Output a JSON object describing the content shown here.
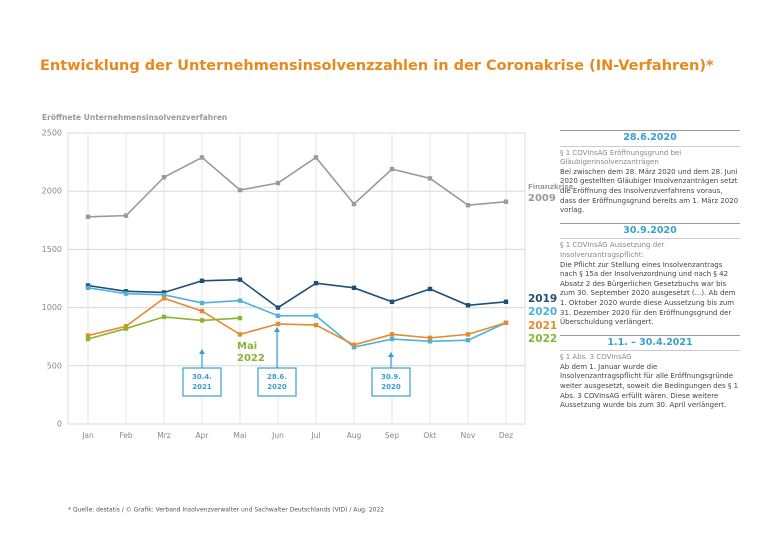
{
  "chart_data": {
    "type": "line",
    "title": "Entwicklung der Unternehmensinsolvenzzahlen in der Coronakrise (IN-Verfahren)*",
    "ylabel": "Eröffnete Unternehmensinsolvenzverfahren",
    "categories": [
      "Jan",
      "Feb",
      "Mrz",
      "Apr",
      "Mai",
      "Jun",
      "Jul",
      "Aug",
      "Sep",
      "Okt",
      "Nov",
      "Dez"
    ],
    "series": [
      {
        "name": "2009",
        "color": "#9a9a9a",
        "values": [
          1780,
          1790,
          2120,
          2290,
          2010,
          2070,
          2290,
          1890,
          2190,
          2110,
          1880,
          1910
        ]
      },
      {
        "name": "2019",
        "color": "#1f4e79",
        "values": [
          1190,
          1140,
          1130,
          1230,
          1240,
          1000,
          1210,
          1170,
          1050,
          1160,
          1020,
          1050
        ]
      },
      {
        "name": "2020",
        "color": "#4db3d8",
        "values": [
          1170,
          1120,
          1110,
          1040,
          1060,
          930,
          930,
          660,
          730,
          710,
          720,
          870
        ]
      },
      {
        "name": "2021",
        "color": "#e58a2e",
        "values": [
          760,
          840,
          1080,
          970,
          770,
          860,
          850,
          680,
          770,
          740,
          770,
          870
        ]
      },
      {
        "name": "2022",
        "color": "#8ab531",
        "values": [
          730,
          820,
          920,
          890,
          910,
          null,
          null,
          null,
          null,
          null,
          null,
          null
        ]
      }
    ],
    "ylim": [
      0,
      2500
    ],
    "yticks": [
      0,
      500,
      1000,
      1500,
      2000,
      2500
    ],
    "grid": true,
    "notes": [
      "Finanzkrise",
      "Mai"
    ],
    "annotations": [
      [
        "30.4.",
        "2021"
      ],
      [
        "28.6.",
        "2020"
      ],
      [
        "30.9.",
        "2020"
      ]
    ],
    "footnote": "* Quelle: destatis / © Grafik: Verband Insolvenzverwalter und Sachwalter Deutschlands (VID) / Aug. 2022"
  },
  "sidebar": [
    {
      "heading": "28.6.2020",
      "subheading": "§ 1 COVInsAG Eröffnungsgrund bei Gläubigerinsolvenzanträgen",
      "body": "Bei zwischen dem 28. März 2020 und dem 28. Juni 2020 gestellten Gläubiger Insolvenzanträgen setzt die Eröffnung des Insolvenzverfahrens voraus, dass der Eröffnungsgrund bereits am 1. März 2020 vorlag."
    },
    {
      "heading": "30.9.2020",
      "subheading": "§ 1 COVInsAG Aussetzung der Insolvenzantragspflicht:",
      "body": "Die Pflicht zur Stellung eines Insolvenzantrags nach § 15a der Insolvenzordnung und nach § 42 Absatz 2 des Bürgerlichen Gesetzbuchs war bis zum 30. September 2020 ausgesetzt (...). Ab dem 1. Oktober 2020 wurde diese Aussetzung bis zum 31. Dezember 2020 für den Eröffnungsgrund der Überschuldung verlängert."
    },
    {
      "heading": "1.1. – 30.4.2021",
      "subheading": "§ 1 Abs. 3 COVInsAG",
      "body": "Ab dem 1. Januar wurde die Insolvenzantragspflicht für alle Eröffnungsgründe weiter ausgesetzt, soweit die Bedingungen des § 1 Abs. 3 COVInsAG erfüllt wären. Diese weitere Aussetzung wurde bis zum 30. April verlängert."
    }
  ]
}
